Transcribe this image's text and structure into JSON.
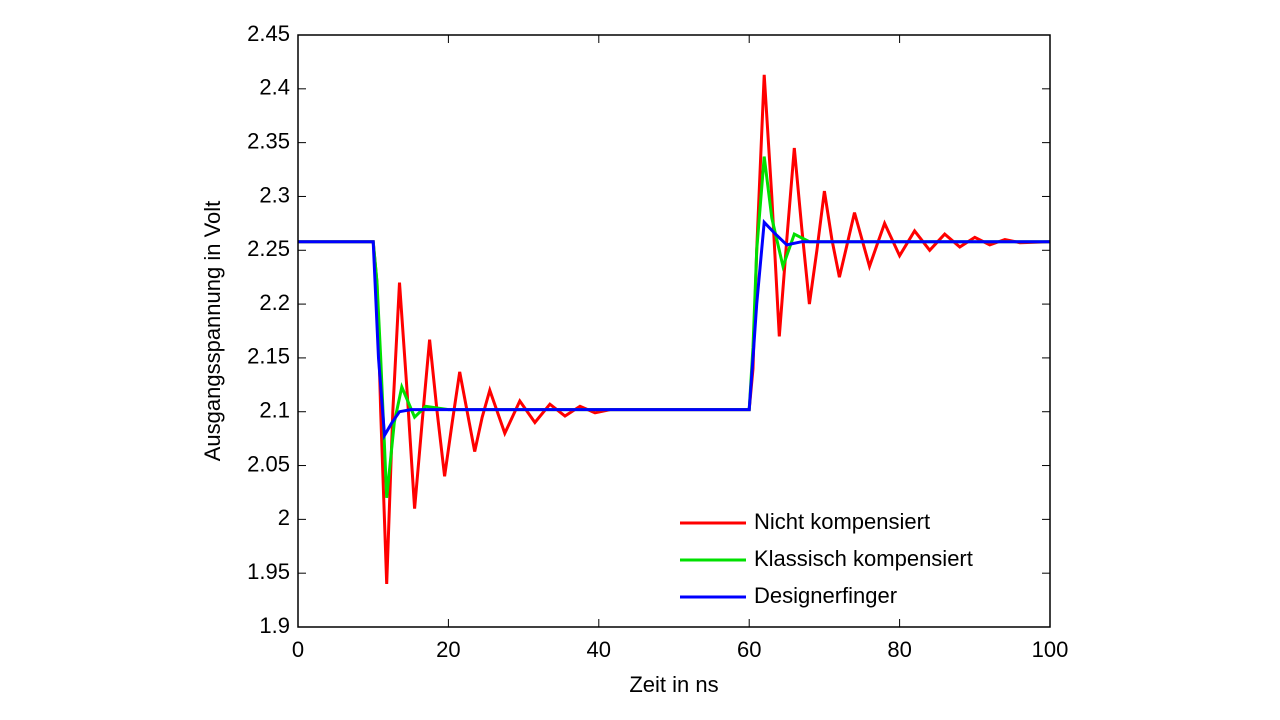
{
  "chart_data": {
    "type": "line",
    "xlabel": "Zeit in ns",
    "ylabel": "Ausgangsspannung in Volt",
    "xlim": [
      0,
      100
    ],
    "xticks": [
      0,
      20,
      40,
      60,
      80,
      100
    ],
    "ylim": [
      1.9,
      2.45
    ],
    "yticks": [
      1.9,
      1.95,
      2,
      2.05,
      2.1,
      2.15,
      2.2,
      2.25,
      2.3,
      2.35,
      2.4,
      2.45
    ],
    "legend": "lower right",
    "series": [
      {
        "name": "Nicht kompensiert",
        "color": "#ff0000",
        "x": [
          0,
          10,
          10.5,
          11,
          11.8,
          12.6,
          13.5,
          14.5,
          15.5,
          16.5,
          17.5,
          18.5,
          19.5,
          20.5,
          21.5,
          22.5,
          23.5,
          24.5,
          25.5,
          26.5,
          27.5,
          29.5,
          31.5,
          33.5,
          35.5,
          37.5,
          39.5,
          41.5,
          44,
          60,
          60.5,
          61,
          62,
          63,
          64,
          65,
          66,
          67,
          68,
          69,
          70,
          71,
          72,
          73,
          74,
          75,
          76,
          77,
          78,
          80,
          82,
          84,
          86,
          88,
          90,
          92,
          94,
          96,
          100
        ],
        "values": [
          2.258,
          2.258,
          2.22,
          2.1,
          1.94,
          2.1,
          2.22,
          2.12,
          2.01,
          2.09,
          2.167,
          2.1,
          2.04,
          2.09,
          2.137,
          2.1,
          2.063,
          2.095,
          2.12,
          2.1,
          2.08,
          2.11,
          2.09,
          2.107,
          2.096,
          2.105,
          2.099,
          2.102,
          2.102,
          2.102,
          2.14,
          2.25,
          2.413,
          2.3,
          2.17,
          2.26,
          2.345,
          2.27,
          2.2,
          2.25,
          2.305,
          2.26,
          2.225,
          2.255,
          2.285,
          2.26,
          2.235,
          2.255,
          2.275,
          2.245,
          2.268,
          2.25,
          2.265,
          2.253,
          2.262,
          2.255,
          2.26,
          2.257,
          2.258
        ]
      },
      {
        "name": "Klassisch kompensiert",
        "color": "#00e000",
        "x": [
          0,
          10,
          10.5,
          11,
          11.8,
          12.8,
          13.8,
          15.5,
          17,
          20,
          60,
          60.5,
          61,
          62,
          63,
          64.5,
          66,
          68,
          100
        ],
        "values": [
          2.258,
          2.258,
          2.22,
          2.15,
          2.02,
          2.09,
          2.123,
          2.095,
          2.105,
          2.102,
          2.102,
          2.16,
          2.25,
          2.337,
          2.28,
          2.235,
          2.265,
          2.258,
          2.258
        ]
      },
      {
        "name": "Designerfinger",
        "color": "#0000ff",
        "x": [
          0,
          10,
          10.7,
          11.5,
          12.5,
          13.5,
          15,
          60,
          60.5,
          61,
          62,
          63.5,
          65,
          67,
          100
        ],
        "values": [
          2.258,
          2.258,
          2.15,
          2.078,
          2.09,
          2.1,
          2.102,
          2.102,
          2.15,
          2.2,
          2.276,
          2.265,
          2.255,
          2.258,
          2.258
        ]
      }
    ]
  }
}
